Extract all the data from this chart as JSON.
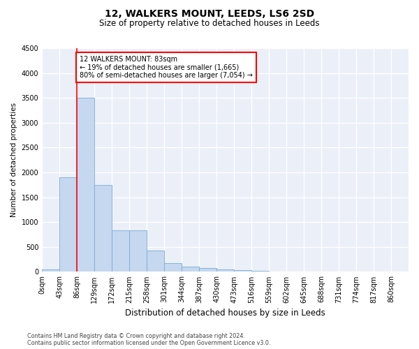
{
  "title": "12, WALKERS MOUNT, LEEDS, LS6 2SD",
  "subtitle": "Size of property relative to detached houses in Leeds",
  "xlabel": "Distribution of detached houses by size in Leeds",
  "ylabel": "Number of detached properties",
  "bin_labels": [
    "0sqm",
    "43sqm",
    "86sqm",
    "129sqm",
    "172sqm",
    "215sqm",
    "258sqm",
    "301sqm",
    "344sqm",
    "387sqm",
    "430sqm",
    "473sqm",
    "516sqm",
    "559sqm",
    "602sqm",
    "645sqm",
    "688sqm",
    "731sqm",
    "774sqm",
    "817sqm",
    "860sqm"
  ],
  "bar_values": [
    50,
    1900,
    3500,
    1750,
    840,
    840,
    430,
    175,
    105,
    70,
    50,
    30,
    15,
    8,
    5,
    3,
    2,
    1,
    1,
    0,
    0
  ],
  "bar_color": "#c5d8f0",
  "bar_edge_color": "#7aaad4",
  "vline_x_index": 2,
  "vline_color": "red",
  "annotation_text": "12 WALKERS MOUNT: 83sqm\n← 19% of detached houses are smaller (1,665)\n80% of semi-detached houses are larger (7,054) →",
  "annotation_box_color": "white",
  "annotation_box_edge": "red",
  "ylim": [
    0,
    4500
  ],
  "yticks": [
    0,
    500,
    1000,
    1500,
    2000,
    2500,
    3000,
    3500,
    4000,
    4500
  ],
  "footer_line1": "Contains HM Land Registry data © Crown copyright and database right 2024.",
  "footer_line2": "Contains public sector information licensed under the Open Government Licence v3.0.",
  "bg_color": "#eaeff8",
  "grid_color": "white",
  "title_fontsize": 10,
  "subtitle_fontsize": 8.5,
  "tick_fontsize": 7,
  "ylabel_fontsize": 7.5,
  "xlabel_fontsize": 8.5,
  "footer_fontsize": 5.8,
  "annot_fontsize": 7
}
